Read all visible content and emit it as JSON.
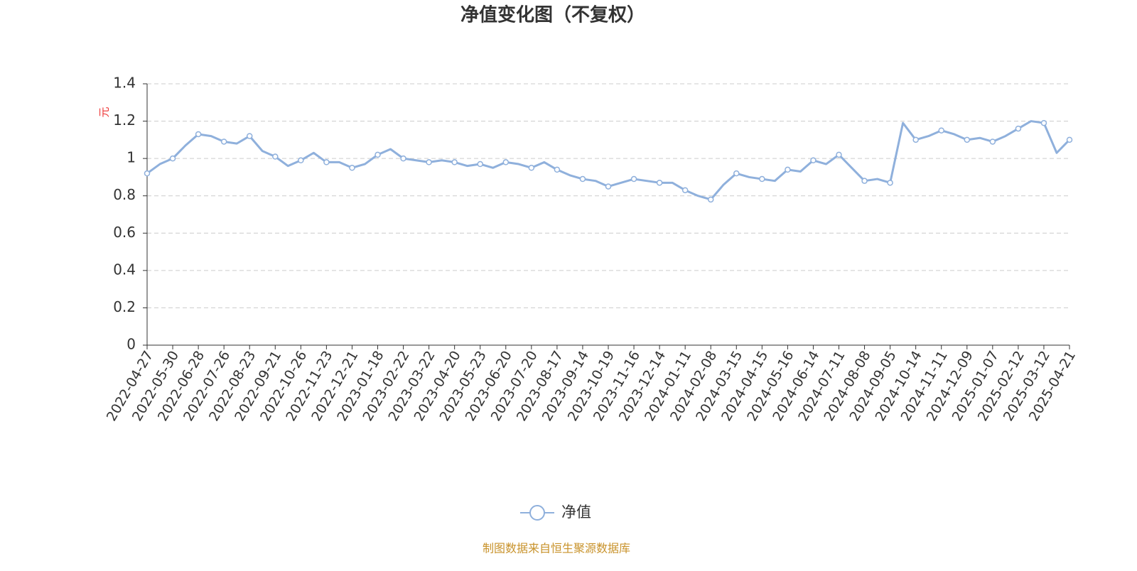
{
  "chart_data": {
    "type": "line",
    "title": "净值变化图（不复权）",
    "y_unit": "元",
    "source": "制图数据来自恒生聚源数据库",
    "categories": [
      "2022-04-27",
      null,
      "2022-05-30",
      null,
      "2022-06-28",
      null,
      "2022-07-26",
      null,
      "2022-08-23",
      null,
      "2022-09-21",
      null,
      "2022-10-26",
      null,
      "2022-11-23",
      null,
      "2022-12-21",
      null,
      "2023-01-18",
      null,
      "2023-02-22",
      null,
      "2023-03-22",
      null,
      "2023-04-20",
      null,
      "2023-05-23",
      null,
      "2023-06-20",
      null,
      "2023-07-20",
      null,
      "2023-08-17",
      null,
      "2023-09-14",
      null,
      "2023-10-19",
      null,
      "2023-11-16",
      null,
      "2023-12-14",
      null,
      "2024-01-11",
      null,
      "2024-02-08",
      null,
      "2024-03-15",
      null,
      "2024-04-15",
      null,
      "2024-05-16",
      null,
      "2024-06-14",
      null,
      "2024-07-11",
      null,
      "2024-08-08",
      null,
      "2024-09-05",
      null,
      "2024-10-14",
      null,
      "2024-11-11",
      null,
      "2024-12-09",
      null,
      "2025-01-07",
      null,
      "2025-02-12",
      null,
      "2025-03-12",
      null,
      "2025-04-21"
    ],
    "series": [
      {
        "name": "净值",
        "color": "#8fb0dc",
        "values": [
          0.92,
          0.97,
          1.0,
          1.07,
          1.13,
          1.12,
          1.09,
          1.08,
          1.12,
          1.04,
          1.01,
          0.96,
          0.99,
          1.03,
          0.98,
          0.98,
          0.95,
          0.97,
          1.02,
          1.05,
          1.0,
          0.99,
          0.98,
          0.99,
          0.98,
          0.96,
          0.97,
          0.95,
          0.98,
          0.97,
          0.95,
          0.98,
          0.94,
          0.91,
          0.89,
          0.88,
          0.85,
          0.87,
          0.89,
          0.88,
          0.87,
          0.87,
          0.83,
          0.8,
          0.78,
          0.86,
          0.92,
          0.9,
          0.89,
          0.88,
          0.94,
          0.93,
          0.99,
          0.97,
          1.02,
          0.95,
          0.88,
          0.89,
          0.87,
          1.19,
          1.1,
          1.12,
          1.15,
          1.13,
          1.1,
          1.11,
          1.09,
          1.12,
          1.16,
          1.2,
          1.19,
          1.03,
          1.1
        ]
      }
    ],
    "ylim": [
      0,
      1.4
    ],
    "yticks": [
      0,
      0.2,
      0.4,
      0.6,
      0.8,
      1,
      1.2,
      1.4
    ],
    "grid": true
  }
}
